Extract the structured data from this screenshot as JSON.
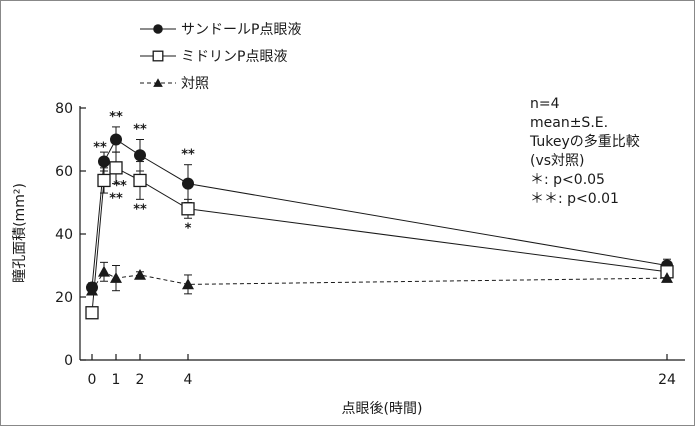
{
  "chart_data": {
    "type": "line",
    "xlabel": "点眼後(時間)",
    "ylabel": "瞳孔面積(mm²)",
    "x_ticks": [
      0,
      1,
      2,
      4,
      24
    ],
    "y_ticks": [
      0,
      20,
      40,
      60,
      80
    ],
    "ylim": [
      0,
      80
    ],
    "grid": false,
    "legend_position": "top-left",
    "series": [
      {
        "name": "サンドールP点眼液",
        "marker": "filled-circle",
        "line": "solid",
        "color": "#1a1a1a",
        "points": [
          {
            "x": 0,
            "y": 23,
            "err": 1.5
          },
          {
            "x": 0.5,
            "y": 63,
            "err": 3,
            "sig": "**"
          },
          {
            "x": 1,
            "y": 70,
            "err": 4,
            "sig": "**"
          },
          {
            "x": 2,
            "y": 65,
            "err": 5,
            "sig": "**"
          },
          {
            "x": 4,
            "y": 56,
            "err": 6,
            "sig": "**"
          },
          {
            "x": 24,
            "y": 30,
            "err": 2
          }
        ]
      },
      {
        "name": "ミドリンP点眼液",
        "marker": "open-square",
        "line": "solid",
        "color": "#1a1a1a",
        "points": [
          {
            "x": 0,
            "y": 15,
            "err": 1
          },
          {
            "x": 0.5,
            "y": 57,
            "err": 4,
            "sig": "**"
          },
          {
            "x": 1,
            "y": 61,
            "err": 5,
            "sig": "**"
          },
          {
            "x": 2,
            "y": 57,
            "err": 6,
            "sig": "**"
          },
          {
            "x": 4,
            "y": 48,
            "err": 3,
            "sig": "*"
          },
          {
            "x": 24,
            "y": 28,
            "err": 2
          }
        ]
      },
      {
        "name": "対照",
        "marker": "filled-triangle",
        "line": "dashed",
        "color": "#1a1a1a",
        "points": [
          {
            "x": 0,
            "y": 22,
            "err": 1
          },
          {
            "x": 0.5,
            "y": 28,
            "err": 3
          },
          {
            "x": 1,
            "y": 26,
            "err": 4
          },
          {
            "x": 2,
            "y": 27,
            "err": 1
          },
          {
            "x": 4,
            "y": 24,
            "err": 3
          },
          {
            "x": 24,
            "y": 26,
            "err": 1
          }
        ]
      }
    ],
    "annotations": [
      "n=4",
      "mean±S.E.",
      "Tukeyの多重比較",
      "(vs対照)",
      "＊: p<0.05",
      "＊＊: p<0.01"
    ]
  }
}
